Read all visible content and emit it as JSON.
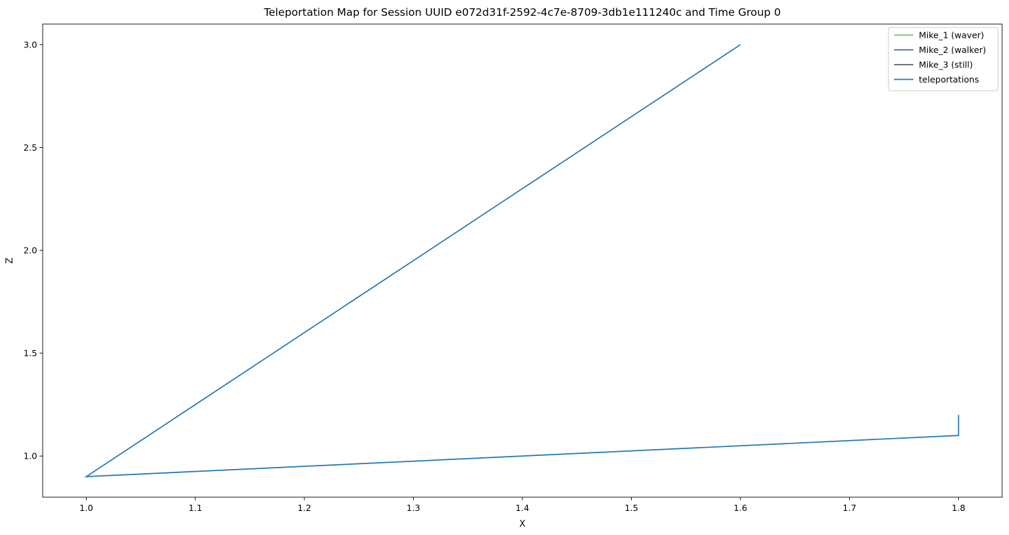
{
  "chart_data": {
    "type": "line",
    "title": "Teleportation Map for Session UUID e072d31f-2592-4c7e-8709-3db1e111240c and Time Group 0",
    "xlabel": "X",
    "ylabel": "Z",
    "xlim": [
      0.96,
      1.84
    ],
    "ylim": [
      0.8,
      3.1
    ],
    "xticks": [
      "1.0",
      "1.1",
      "1.2",
      "1.3",
      "1.4",
      "1.5",
      "1.6",
      "1.7",
      "1.8"
    ],
    "yticks": [
      "1.0",
      "1.5",
      "2.0",
      "2.5",
      "3.0"
    ],
    "grid": false,
    "legend_position": "top-right",
    "series": [
      {
        "name": "Mike_1 (waver)",
        "color": "#74c476",
        "x": [],
        "y": []
      },
      {
        "name": "Mike_2 (walker)",
        "color": "#2b6fae",
        "x": [],
        "y": []
      },
      {
        "name": "Mike_3 (still)",
        "color": "#636363",
        "x": [],
        "y": []
      },
      {
        "name": "teleportations",
        "color": "#1f77b4",
        "x": [
          1.6,
          1.0,
          1.8,
          1.8
        ],
        "y": [
          3.0,
          0.9,
          1.1,
          1.2
        ]
      }
    ]
  }
}
